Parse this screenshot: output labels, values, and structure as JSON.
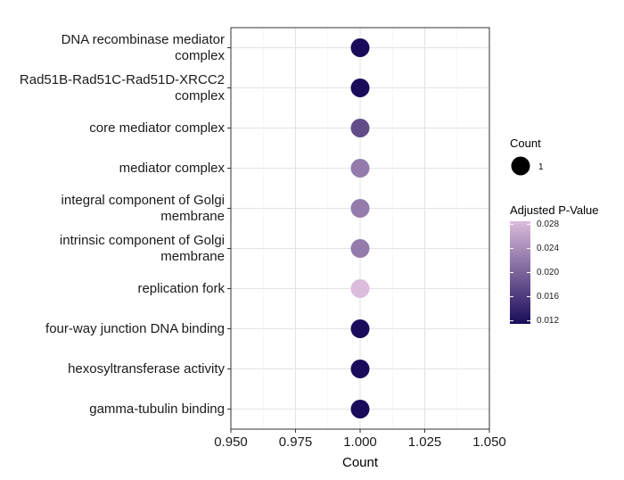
{
  "chart_data": {
    "type": "scatter",
    "title": "",
    "xlabel": "Count",
    "ylabel": "",
    "xlim": [
      0.95,
      1.05
    ],
    "x_ticks": [
      "0.950",
      "0.975",
      "1.000",
      "1.025",
      "1.050"
    ],
    "x_tick_values": [
      0.95,
      0.975,
      1.0,
      1.025,
      1.05
    ],
    "grid": true,
    "categories": [
      "DNA recombinase mediator complex",
      "Rad51B-Rad51C-Rad51D-XRCC2 complex",
      "core mediator complex",
      "mediator complex",
      "integral component of Golgi membrane",
      "intrinsic component of Golgi membrane",
      "replication fork",
      "four-way junction DNA binding",
      "hexosyltransferase activity",
      "gamma-tubulin binding"
    ],
    "category_lines": [
      [
        "DNA recombinase mediator",
        "complex"
      ],
      [
        "Rad51B-Rad51C-Rad51D-XRCC2",
        "complex"
      ],
      [
        "core mediator complex"
      ],
      [
        "mediator complex"
      ],
      [
        "integral component of Golgi",
        "membrane"
      ],
      [
        "intrinsic component of Golgi",
        "membrane"
      ],
      [
        "replication fork"
      ],
      [
        "four-way junction DNA binding"
      ],
      [
        "hexosyltransferase activity"
      ],
      [
        "gamma-tubulin binding"
      ]
    ],
    "x": [
      1,
      1,
      1,
      1,
      1,
      1,
      1,
      1,
      1,
      1
    ],
    "count": [
      1,
      1,
      1,
      1,
      1,
      1,
      1,
      1,
      1,
      1
    ],
    "p_adjust": [
      0.0115,
      0.0115,
      0.0178,
      0.0222,
      0.0222,
      0.0222,
      0.0285,
      0.0115,
      0.0115,
      0.0115
    ],
    "legend": {
      "placement": "right",
      "size_title": "Count",
      "size_labels": [
        "1"
      ],
      "color_title": "Adjusted P-Value",
      "color_labels": [
        "0.028",
        "0.024",
        "0.020",
        "0.016",
        "0.012"
      ],
      "color_values": [
        0.028,
        0.024,
        0.02,
        0.016,
        0.012
      ],
      "color_range": [
        0.0115,
        0.0285
      ],
      "color_low": "#1a0c5a",
      "color_high": "#dcbcdc"
    }
  }
}
